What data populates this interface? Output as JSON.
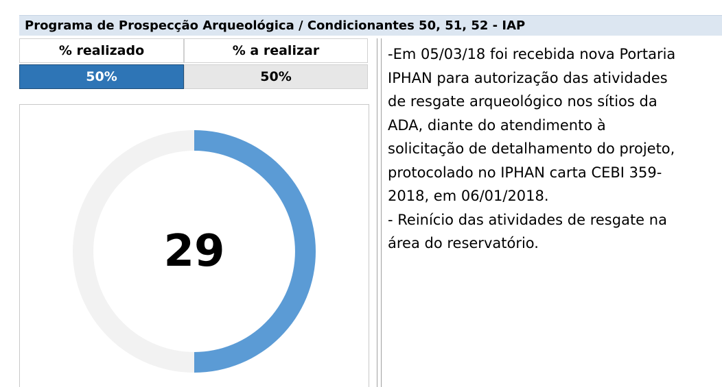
{
  "header": {
    "title": "Programa de Prospecção Arqueológica / Condicionantes 50, 51, 52 - IAP"
  },
  "table": {
    "rows": [
      [
        "% realizado",
        "% a realizar"
      ],
      [
        "50%",
        "50%"
      ]
    ]
  },
  "chart_data": {
    "type": "pie",
    "values": [
      50,
      50
    ],
    "colors": [
      "#5b9bd5",
      "#f2f2f2"
    ],
    "center_label": "29"
  },
  "notes": {
    "lines": [
      "-Em 05/03/18 foi recebida nova Portaria",
      "IPHAN para autorização das atividades",
      "de resgate arqueológico nos sítios da",
      "ADA, diante do atendimento à",
      "solicitação de detalhamento do projeto,",
      "protocolado no IPHAN carta CEBI 359-",
      "2018, em 06/01/2018.",
      "- Reinício das atividades de resgate na",
      "área do reservatório."
    ]
  }
}
